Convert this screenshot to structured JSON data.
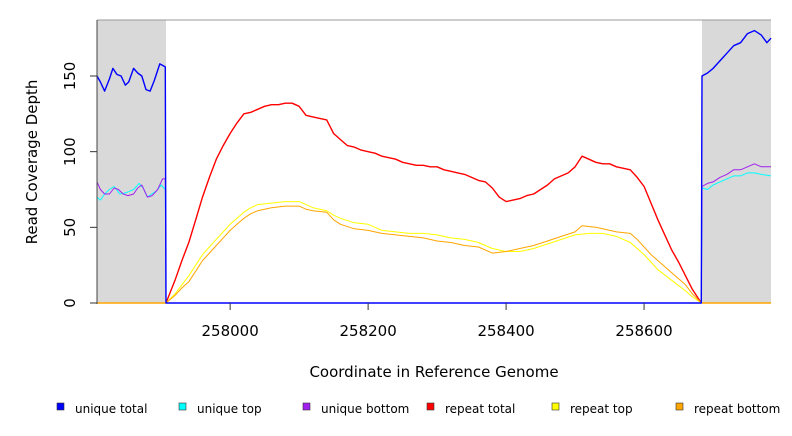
{
  "chart_data": {
    "type": "line",
    "title": "",
    "xlabel": "Coordinate in Reference Genome",
    "ylabel": "Read Coverage Depth",
    "xlim": [
      257807,
      258784
    ],
    "ylim": [
      0,
      187
    ],
    "xticks": [
      258000,
      258200,
      258400,
      258600
    ],
    "yticks": [
      0,
      50,
      100,
      150
    ],
    "shaded_regions": [
      [
        257807,
        257907
      ],
      [
        258684,
        258784
      ]
    ],
    "shade_color": "#d9d9d9",
    "legend_position": "bottom",
    "series": [
      {
        "name": "unique total",
        "color": "#0000ff",
        "points": [
          [
            257807,
            150
          ],
          [
            257812,
            146
          ],
          [
            257818,
            140
          ],
          [
            257825,
            148
          ],
          [
            257830,
            155
          ],
          [
            257836,
            151
          ],
          [
            257842,
            150
          ],
          [
            257848,
            144
          ],
          [
            257853,
            146
          ],
          [
            257860,
            155
          ],
          [
            257866,
            152
          ],
          [
            257872,
            150
          ],
          [
            257878,
            141
          ],
          [
            257884,
            140
          ],
          [
            257890,
            147
          ],
          [
            257898,
            158
          ],
          [
            257906,
            156
          ],
          [
            257907,
            0
          ],
          [
            258683,
            0
          ],
          [
            258684,
            150
          ],
          [
            258692,
            152
          ],
          [
            258700,
            155
          ],
          [
            258710,
            160
          ],
          [
            258720,
            165
          ],
          [
            258730,
            170
          ],
          [
            258740,
            172
          ],
          [
            258750,
            178
          ],
          [
            258760,
            180
          ],
          [
            258770,
            177
          ],
          [
            258778,
            172
          ],
          [
            258784,
            175
          ]
        ]
      },
      {
        "name": "unique top",
        "color": "#00ffff",
        "points": [
          [
            257807,
            70
          ],
          [
            257812,
            68
          ],
          [
            257818,
            72
          ],
          [
            257825,
            75
          ],
          [
            257832,
            77
          ],
          [
            257840,
            72
          ],
          [
            257850,
            73
          ],
          [
            257860,
            75
          ],
          [
            257868,
            79
          ],
          [
            257874,
            76
          ],
          [
            257880,
            70
          ],
          [
            257886,
            72
          ],
          [
            257893,
            74
          ],
          [
            257900,
            78
          ],
          [
            257906,
            75
          ],
          [
            257907,
            0
          ],
          [
            258683,
            0
          ],
          [
            258684,
            76
          ],
          [
            258692,
            75
          ],
          [
            258700,
            78
          ],
          [
            258710,
            80
          ],
          [
            258720,
            82
          ],
          [
            258730,
            84
          ],
          [
            258740,
            84
          ],
          [
            258750,
            86
          ],
          [
            258760,
            86
          ],
          [
            258770,
            85
          ],
          [
            258784,
            84
          ]
        ]
      },
      {
        "name": "unique bottom",
        "color": "#a020f0",
        "points": [
          [
            257807,
            80
          ],
          [
            257812,
            75
          ],
          [
            257818,
            72
          ],
          [
            257825,
            72
          ],
          [
            257832,
            76
          ],
          [
            257838,
            75
          ],
          [
            257845,
            72
          ],
          [
            257852,
            71
          ],
          [
            257860,
            72
          ],
          [
            257866,
            76
          ],
          [
            257872,
            78
          ],
          [
            257880,
            70
          ],
          [
            257887,
            71
          ],
          [
            257895,
            75
          ],
          [
            257902,
            82
          ],
          [
            257906,
            82
          ],
          [
            257907,
            0
          ],
          [
            258683,
            0
          ],
          [
            258684,
            77
          ],
          [
            258692,
            79
          ],
          [
            258700,
            80
          ],
          [
            258710,
            83
          ],
          [
            258720,
            85
          ],
          [
            258730,
            88
          ],
          [
            258740,
            88
          ],
          [
            258750,
            90
          ],
          [
            258760,
            92
          ],
          [
            258770,
            90
          ],
          [
            258784,
            90
          ]
        ]
      },
      {
        "name": "repeat total",
        "color": "#ff0000",
        "points": [
          [
            257907,
            0
          ],
          [
            257920,
            15
          ],
          [
            257930,
            28
          ],
          [
            257940,
            40
          ],
          [
            257950,
            55
          ],
          [
            257960,
            70
          ],
          [
            257970,
            83
          ],
          [
            257980,
            95
          ],
          [
            257990,
            104
          ],
          [
            258000,
            112
          ],
          [
            258010,
            119
          ],
          [
            258020,
            125
          ],
          [
            258030,
            126
          ],
          [
            258040,
            128
          ],
          [
            258050,
            130
          ],
          [
            258060,
            131
          ],
          [
            258070,
            131
          ],
          [
            258080,
            132
          ],
          [
            258090,
            132
          ],
          [
            258100,
            130
          ],
          [
            258110,
            124
          ],
          [
            258120,
            123
          ],
          [
            258130,
            122
          ],
          [
            258140,
            121
          ],
          [
            258150,
            112
          ],
          [
            258160,
            108
          ],
          [
            258170,
            104
          ],
          [
            258180,
            103
          ],
          [
            258190,
            101
          ],
          [
            258200,
            100
          ],
          [
            258210,
            99
          ],
          [
            258220,
            97
          ],
          [
            258230,
            96
          ],
          [
            258240,
            95
          ],
          [
            258250,
            93
          ],
          [
            258260,
            92
          ],
          [
            258270,
            91
          ],
          [
            258280,
            91
          ],
          [
            258290,
            90
          ],
          [
            258300,
            90
          ],
          [
            258310,
            88
          ],
          [
            258320,
            87
          ],
          [
            258330,
            86
          ],
          [
            258340,
            85
          ],
          [
            258350,
            83
          ],
          [
            258360,
            81
          ],
          [
            258370,
            80
          ],
          [
            258380,
            76
          ],
          [
            258390,
            70
          ],
          [
            258400,
            67
          ],
          [
            258410,
            68
          ],
          [
            258420,
            69
          ],
          [
            258430,
            71
          ],
          [
            258440,
            72
          ],
          [
            258450,
            75
          ],
          [
            258460,
            78
          ],
          [
            258470,
            82
          ],
          [
            258480,
            84
          ],
          [
            258490,
            86
          ],
          [
            258500,
            90
          ],
          [
            258510,
            97
          ],
          [
            258520,
            95
          ],
          [
            258530,
            93
          ],
          [
            258540,
            92
          ],
          [
            258550,
            92
          ],
          [
            258560,
            90
          ],
          [
            258570,
            89
          ],
          [
            258580,
            88
          ],
          [
            258590,
            83
          ],
          [
            258600,
            77
          ],
          [
            258610,
            66
          ],
          [
            258620,
            55
          ],
          [
            258630,
            45
          ],
          [
            258640,
            35
          ],
          [
            258650,
            27
          ],
          [
            258660,
            18
          ],
          [
            258670,
            9
          ],
          [
            258683,
            0
          ]
        ]
      },
      {
        "name": "repeat top",
        "color": "#ffff00",
        "points": [
          [
            257907,
            0
          ],
          [
            257920,
            6
          ],
          [
            257930,
            12
          ],
          [
            257940,
            18
          ],
          [
            257950,
            25
          ],
          [
            257960,
            32
          ],
          [
            257970,
            37
          ],
          [
            257980,
            42
          ],
          [
            257990,
            47
          ],
          [
            258000,
            52
          ],
          [
            258010,
            56
          ],
          [
            258020,
            60
          ],
          [
            258030,
            63
          ],
          [
            258040,
            65
          ],
          [
            258060,
            66
          ],
          [
            258080,
            67
          ],
          [
            258100,
            67
          ],
          [
            258110,
            65
          ],
          [
            258120,
            63
          ],
          [
            258140,
            61
          ],
          [
            258150,
            58
          ],
          [
            258160,
            56
          ],
          [
            258180,
            53
          ],
          [
            258200,
            52
          ],
          [
            258210,
            50
          ],
          [
            258220,
            48
          ],
          [
            258240,
            47
          ],
          [
            258260,
            46
          ],
          [
            258280,
            46
          ],
          [
            258300,
            45
          ],
          [
            258320,
            43
          ],
          [
            258340,
            42
          ],
          [
            258360,
            40
          ],
          [
            258370,
            38
          ],
          [
            258380,
            36
          ],
          [
            258400,
            34
          ],
          [
            258420,
            34
          ],
          [
            258440,
            36
          ],
          [
            258460,
            39
          ],
          [
            258480,
            42
          ],
          [
            258500,
            45
          ],
          [
            258520,
            46
          ],
          [
            258540,
            46
          ],
          [
            258560,
            44
          ],
          [
            258580,
            40
          ],
          [
            258590,
            36
          ],
          [
            258600,
            32
          ],
          [
            258610,
            27
          ],
          [
            258620,
            22
          ],
          [
            258640,
            15
          ],
          [
            258660,
            8
          ],
          [
            258670,
            4
          ],
          [
            258683,
            0
          ]
        ]
      },
      {
        "name": "repeat bottom",
        "color": "#ffa500",
        "points": [
          [
            257907,
            0
          ],
          [
            257920,
            5
          ],
          [
            257930,
            10
          ],
          [
            257940,
            14
          ],
          [
            257950,
            21
          ],
          [
            257960,
            28
          ],
          [
            257970,
            33
          ],
          [
            257980,
            38
          ],
          [
            257990,
            43
          ],
          [
            258000,
            48
          ],
          [
            258010,
            52
          ],
          [
            258020,
            56
          ],
          [
            258030,
            59
          ],
          [
            258040,
            61
          ],
          [
            258060,
            63
          ],
          [
            258080,
            64
          ],
          [
            258100,
            64
          ],
          [
            258110,
            62
          ],
          [
            258120,
            61
          ],
          [
            258140,
            60
          ],
          [
            258150,
            55
          ],
          [
            258160,
            52
          ],
          [
            258180,
            49
          ],
          [
            258200,
            48
          ],
          [
            258220,
            46
          ],
          [
            258240,
            45
          ],
          [
            258260,
            44
          ],
          [
            258280,
            43
          ],
          [
            258300,
            41
          ],
          [
            258320,
            40
          ],
          [
            258340,
            38
          ],
          [
            258360,
            37
          ],
          [
            258380,
            33
          ],
          [
            258400,
            34
          ],
          [
            258420,
            36
          ],
          [
            258440,
            38
          ],
          [
            258460,
            41
          ],
          [
            258480,
            44
          ],
          [
            258500,
            47
          ],
          [
            258510,
            51
          ],
          [
            258530,
            50
          ],
          [
            258540,
            49
          ],
          [
            258560,
            47
          ],
          [
            258580,
            46
          ],
          [
            258590,
            42
          ],
          [
            258600,
            37
          ],
          [
            258610,
            32
          ],
          [
            258620,
            28
          ],
          [
            258640,
            20
          ],
          [
            258660,
            12
          ],
          [
            258670,
            6
          ],
          [
            258683,
            0
          ]
        ]
      }
    ]
  }
}
